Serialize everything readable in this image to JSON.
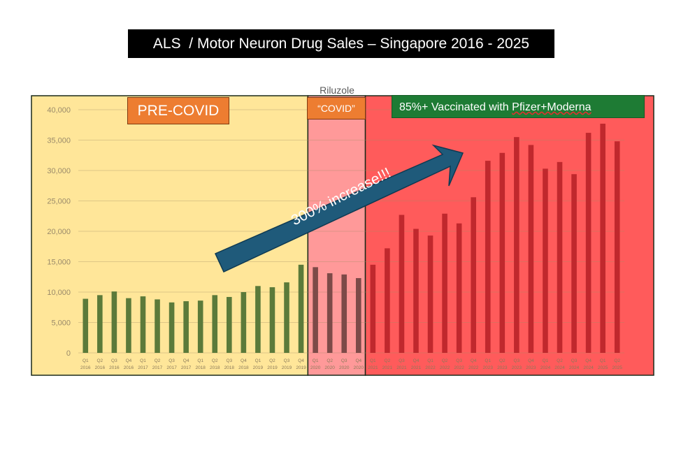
{
  "header": {
    "title": "ALS  / Motor Neuron Drug Sales – Singapore 2016 - 2025"
  },
  "chart_data": {
    "type": "bar",
    "title": "Riluzole",
    "xlabel": "",
    "ylabel": "",
    "ylim": [
      0,
      40000
    ],
    "yticks": [
      "0",
      "5,000",
      "10,000",
      "15,000",
      "20,000",
      "25,000",
      "30,000",
      "35,000",
      "40,000"
    ],
    "ytick_values": [
      0,
      5000,
      10000,
      15000,
      20000,
      25000,
      30000,
      35000,
      40000
    ],
    "categories": [
      [
        "Q1",
        "2016"
      ],
      [
        "Q2",
        "2016"
      ],
      [
        "Q3",
        "2016"
      ],
      [
        "Q4",
        "2016"
      ],
      [
        "Q1",
        "2017"
      ],
      [
        "Q2",
        "2017"
      ],
      [
        "Q3",
        "2017"
      ],
      [
        "Q4",
        "2017"
      ],
      [
        "Q1",
        "2018"
      ],
      [
        "Q2",
        "2018"
      ],
      [
        "Q3",
        "2018"
      ],
      [
        "Q4",
        "2018"
      ],
      [
        "Q1",
        "2019"
      ],
      [
        "Q2",
        "2019"
      ],
      [
        "Q3",
        "2019"
      ],
      [
        "Q4",
        "2019"
      ],
      [
        "Q1",
        "2020"
      ],
      [
        "Q2",
        "2020"
      ],
      [
        "Q3",
        "2020"
      ],
      [
        "Q4",
        "2020"
      ],
      [
        "Q1",
        "2021"
      ],
      [
        "Q2",
        "2021"
      ],
      [
        "Q3",
        "2021"
      ],
      [
        "Q4",
        "2021"
      ],
      [
        "Q1",
        "2022"
      ],
      [
        "Q2",
        "2022"
      ],
      [
        "Q3",
        "2022"
      ],
      [
        "Q4",
        "2022"
      ],
      [
        "Q1",
        "2023"
      ],
      [
        "Q2",
        "2023"
      ],
      [
        "Q3",
        "2023"
      ],
      [
        "Q4",
        "2023"
      ],
      [
        "Q1",
        "2024"
      ],
      [
        "Q2",
        "2024"
      ],
      [
        "Q3",
        "2024"
      ],
      [
        "Q4",
        "2024"
      ],
      [
        "Q1",
        "2025"
      ],
      [
        "Q2",
        "2025"
      ]
    ],
    "series": [
      {
        "name": "Riluzole",
        "values": [
          8900,
          9500,
          10100,
          9000,
          9300,
          8800,
          8300,
          8500,
          8600,
          9500,
          9200,
          10000,
          11000,
          10800,
          11600,
          14500,
          14100,
          13100,
          12900,
          12300,
          14500,
          17200,
          22700,
          20400,
          19300,
          22900,
          21300,
          25600,
          31600,
          32900,
          35500,
          34200,
          30300,
          31400,
          29400,
          36200,
          37700,
          34800
        ]
      }
    ],
    "regions": [
      {
        "name": "pre-covid",
        "label": "PRE-COVID",
        "start_index": 0,
        "end_index": 15,
        "color": "#ffe699"
      },
      {
        "name": "covid",
        "label": "“COVID”",
        "start_index": 16,
        "end_index": 19,
        "color": "#ff9999"
      },
      {
        "name": "vaccinated",
        "label_a": "85%+ Vaccinated with ",
        "label_b": "Pfizer+Moderna",
        "start_index": 20,
        "end_index": 37,
        "color": "#ff5b5b"
      }
    ],
    "annotations": [
      {
        "text": "300% increase!!!",
        "type": "arrow"
      }
    ],
    "colors": {
      "bar": "#5b7a3a",
      "bar_covid": "#7d4a48",
      "bar_vacc": "#c0282d",
      "arrow": "#1f5a7a"
    }
  }
}
